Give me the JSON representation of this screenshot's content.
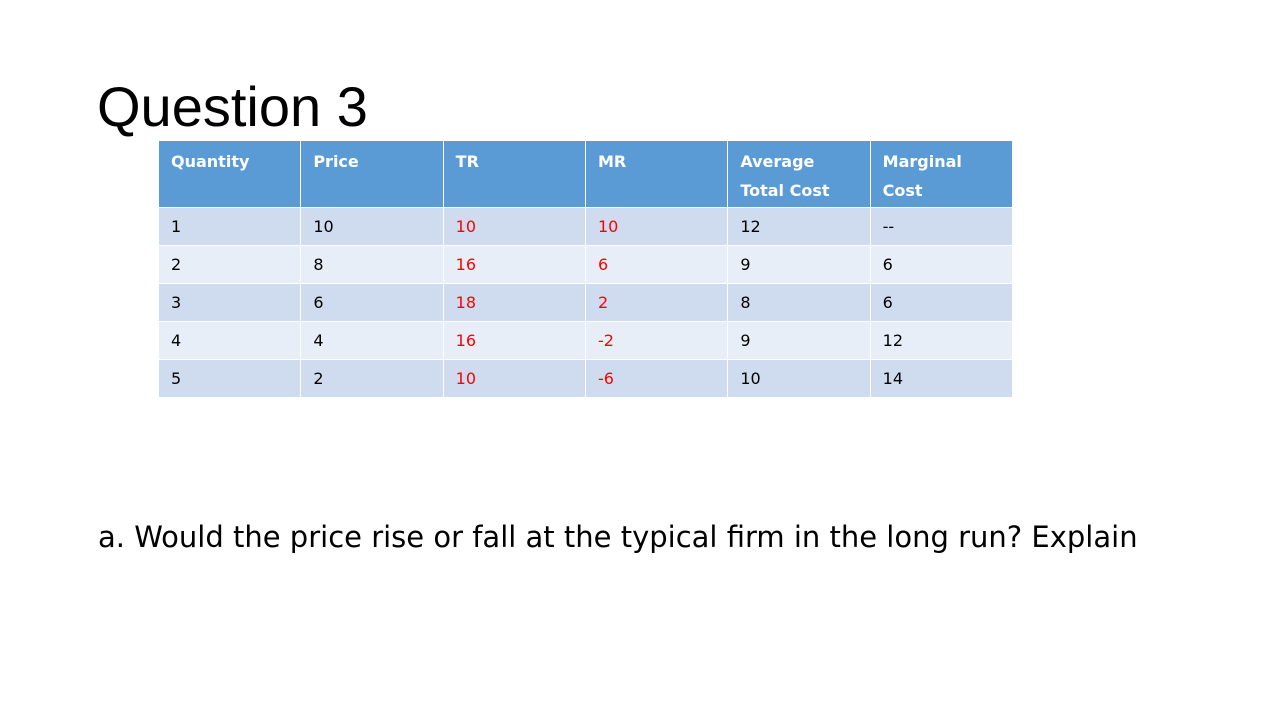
{
  "slide": {
    "title": "Question 3",
    "question": "a. Would the price rise or fall at the typical firm in the long run? Explain"
  },
  "table": {
    "headers": [
      "Quantity",
      "Price",
      "TR",
      "MR",
      "Average Total Cost",
      "Marginal Cost"
    ],
    "rows": [
      [
        "1",
        "10",
        "10",
        "10",
        "12",
        "--"
      ],
      [
        "2",
        "8",
        "16",
        "6",
        "9",
        "6"
      ],
      [
        "3",
        "6",
        "18",
        "2",
        "8",
        "6"
      ],
      [
        "4",
        "4",
        "16",
        "-2",
        "9",
        "12"
      ],
      [
        "5",
        "2",
        "10",
        "-6",
        "10",
        "14"
      ]
    ],
    "highlight_columns": [
      "TR",
      "MR"
    ]
  },
  "colors": {
    "header_bg": "#5b9bd5",
    "header_text": "#ffffff",
    "row_band_1": "#cfdcef",
    "row_band_2": "#e8eef8",
    "highlight_text": "#ff0000"
  }
}
